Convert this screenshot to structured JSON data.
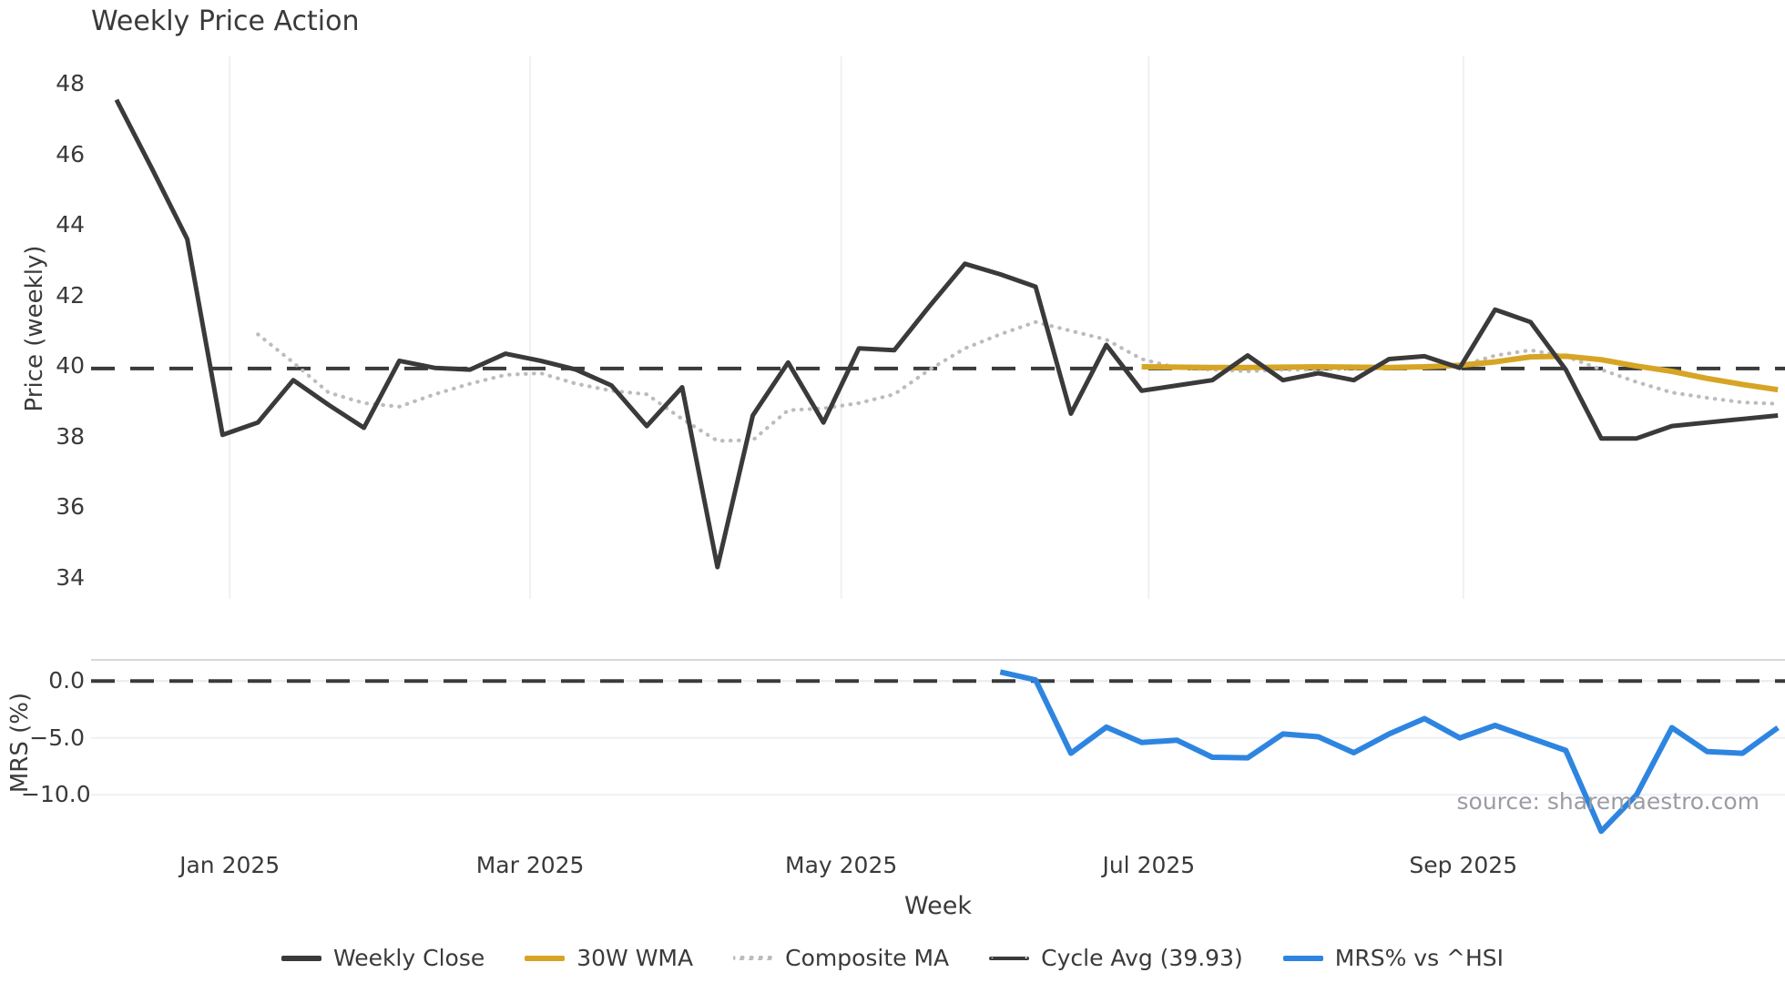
{
  "chart_data": {
    "type": "line",
    "title": "Weekly Price Action",
    "xlabel": "Week",
    "source": "source: sharemaestro.com",
    "background": "#ffffff",
    "x_unit": "week_index",
    "n_points": 48,
    "xlim": [
      -0.72,
      47.2
    ],
    "grid_color": "#eef0f5",
    "zero_grid_color": "#e9e9f2",
    "spine_color": "#d7d7dc",
    "xticks": [
      {
        "label": "Jan 2025",
        "week": 3.2
      },
      {
        "label": "Mar 2025",
        "week": 11.7
      },
      {
        "label": "May 2025",
        "week": 20.5
      },
      {
        "label": "Jul 2025",
        "week": 29.2
      },
      {
        "label": "Sep 2025",
        "week": 38.1
      }
    ],
    "panels": [
      {
        "ylabel": "Price (weekly)",
        "ylim": [
          33.4,
          48.83
        ],
        "yticks": [
          {
            "label": "48",
            "value": 48
          },
          {
            "label": "46",
            "value": 46
          },
          {
            "label": "44",
            "value": 44
          },
          {
            "label": "42",
            "value": 42
          },
          {
            "label": "40",
            "value": 40
          },
          {
            "label": "38",
            "value": 38
          },
          {
            "label": "36",
            "value": 36
          },
          {
            "label": "34",
            "value": 34
          }
        ],
        "grid_vertical_months": true,
        "series": [
          {
            "name": "Weekly Close",
            "color": "#3a3a3a",
            "style": "solid",
            "width": 5,
            "values": [
              47.55,
              45.6,
              43.6,
              38.05,
              38.4,
              39.6,
              38.9,
              38.25,
              40.15,
              39.95,
              39.9,
              40.35,
              40.15,
              39.9,
              39.45,
              38.3,
              39.4,
              34.3,
              38.6,
              40.1,
              38.4,
              40.5,
              40.45,
              41.7,
              42.9,
              42.6,
              42.25,
              38.65,
              40.6,
              39.3,
              39.45,
              39.6,
              40.3,
              39.6,
              39.8,
              39.6,
              40.2,
              40.28,
              39.95,
              41.6,
              41.25,
              39.9,
              37.95,
              37.95,
              38.3,
              38.4,
              38.5,
              38.6
            ]
          },
          {
            "name": "30W WMA",
            "color": "#d7a525",
            "style": "solid",
            "width": 6,
            "values": [
              null,
              null,
              null,
              null,
              null,
              null,
              null,
              null,
              null,
              null,
              null,
              null,
              null,
              null,
              null,
              null,
              null,
              null,
              null,
              null,
              null,
              null,
              null,
              null,
              null,
              null,
              null,
              null,
              null,
              39.98,
              39.97,
              39.96,
              39.96,
              39.97,
              39.98,
              39.97,
              39.96,
              39.98,
              40.02,
              40.12,
              40.26,
              40.28,
              40.18,
              40.0,
              39.85,
              39.65,
              39.48,
              39.33
            ]
          },
          {
            "name": "Composite MA",
            "color": "#bcbcbc",
            "style": "dotted",
            "width": 4.2,
            "values": [
              null,
              null,
              null,
              null,
              40.9,
              40.1,
              39.25,
              38.95,
              38.85,
              39.2,
              39.5,
              39.75,
              39.8,
              39.5,
              39.3,
              39.2,
              38.5,
              37.88,
              37.9,
              38.75,
              38.8,
              38.95,
              39.2,
              39.9,
              40.5,
              40.9,
              41.25,
              41.0,
              40.75,
              40.2,
              39.95,
              39.9,
              39.85,
              39.9,
              39.9,
              39.93,
              39.95,
              39.97,
              40.0,
              40.3,
              40.45,
              40.28,
              39.9,
              39.55,
              39.25,
              39.1,
              38.97,
              38.93
            ]
          },
          {
            "name": "Cycle Avg (39.93)",
            "color": "#3a3a3a",
            "style": "dashed",
            "width": 4,
            "value": 39.93
          }
        ]
      },
      {
        "ylabel": "MRS (%)",
        "ylim": [
          -13.74,
          1.86
        ],
        "yticks": [
          {
            "label": "0.0",
            "value": 0
          },
          {
            "label": "−5.0",
            "value": -5
          },
          {
            "label": "−10.0",
            "value": -10
          }
        ],
        "gridlines_y": [
          -5,
          -10
        ],
        "zero_line_value": 0,
        "series": [
          {
            "name": "MRS% vs ^HSI",
            "color": "#2e85e0",
            "style": "solid",
            "width": 6,
            "values": [
              null,
              null,
              null,
              null,
              null,
              null,
              null,
              null,
              null,
              null,
              null,
              null,
              null,
              null,
              null,
              null,
              null,
              null,
              null,
              null,
              null,
              null,
              null,
              null,
              null,
              0.8,
              0.1,
              -6.35,
              -4.05,
              -5.4,
              -5.2,
              -6.7,
              -6.75,
              -4.65,
              -4.9,
              -6.3,
              -4.65,
              -3.3,
              -5.0,
              -3.9,
              -5.0,
              -6.1,
              -13.2,
              -10.0,
              -4.1,
              -6.2,
              -6.35,
              -4.1
            ]
          }
        ]
      }
    ],
    "legend": {
      "items": [
        {
          "label": "Weekly Close",
          "color": "#3a3a3a",
          "pattern": "solid"
        },
        {
          "label": "30W WMA",
          "color": "#d7a525",
          "pattern": "solid"
        },
        {
          "label": "Composite MA",
          "color": "#bcbcbc",
          "pattern": "dotted"
        },
        {
          "label": "Cycle Avg (39.93)",
          "color": "#3a3a3a",
          "pattern": "dashed"
        },
        {
          "label": "MRS% vs ^HSI",
          "color": "#2e85e0",
          "pattern": "solid"
        }
      ]
    }
  }
}
